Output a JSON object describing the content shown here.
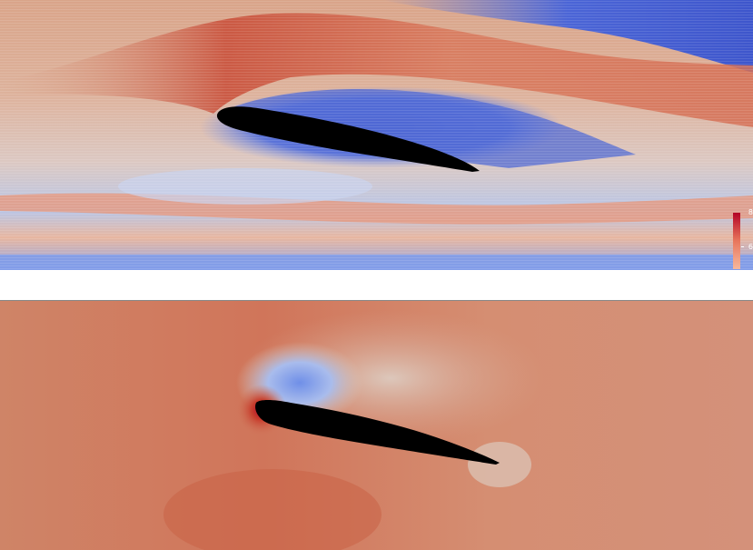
{
  "panels": [
    {
      "name": "streamlines-panel",
      "description_kind": "flow-field-streamlines"
    },
    {
      "name": "pressure-panel",
      "description_kind": "flow-field-scalar"
    }
  ],
  "colorbar": {
    "max_label": "8",
    "mid_label": "6"
  },
  "colors": {
    "high": "#b40426",
    "mid_high": "#e8765c",
    "neutral": "#e6d2c4",
    "mid_low": "#8db0fe",
    "low": "#3b4cc0",
    "body": "#000000"
  }
}
